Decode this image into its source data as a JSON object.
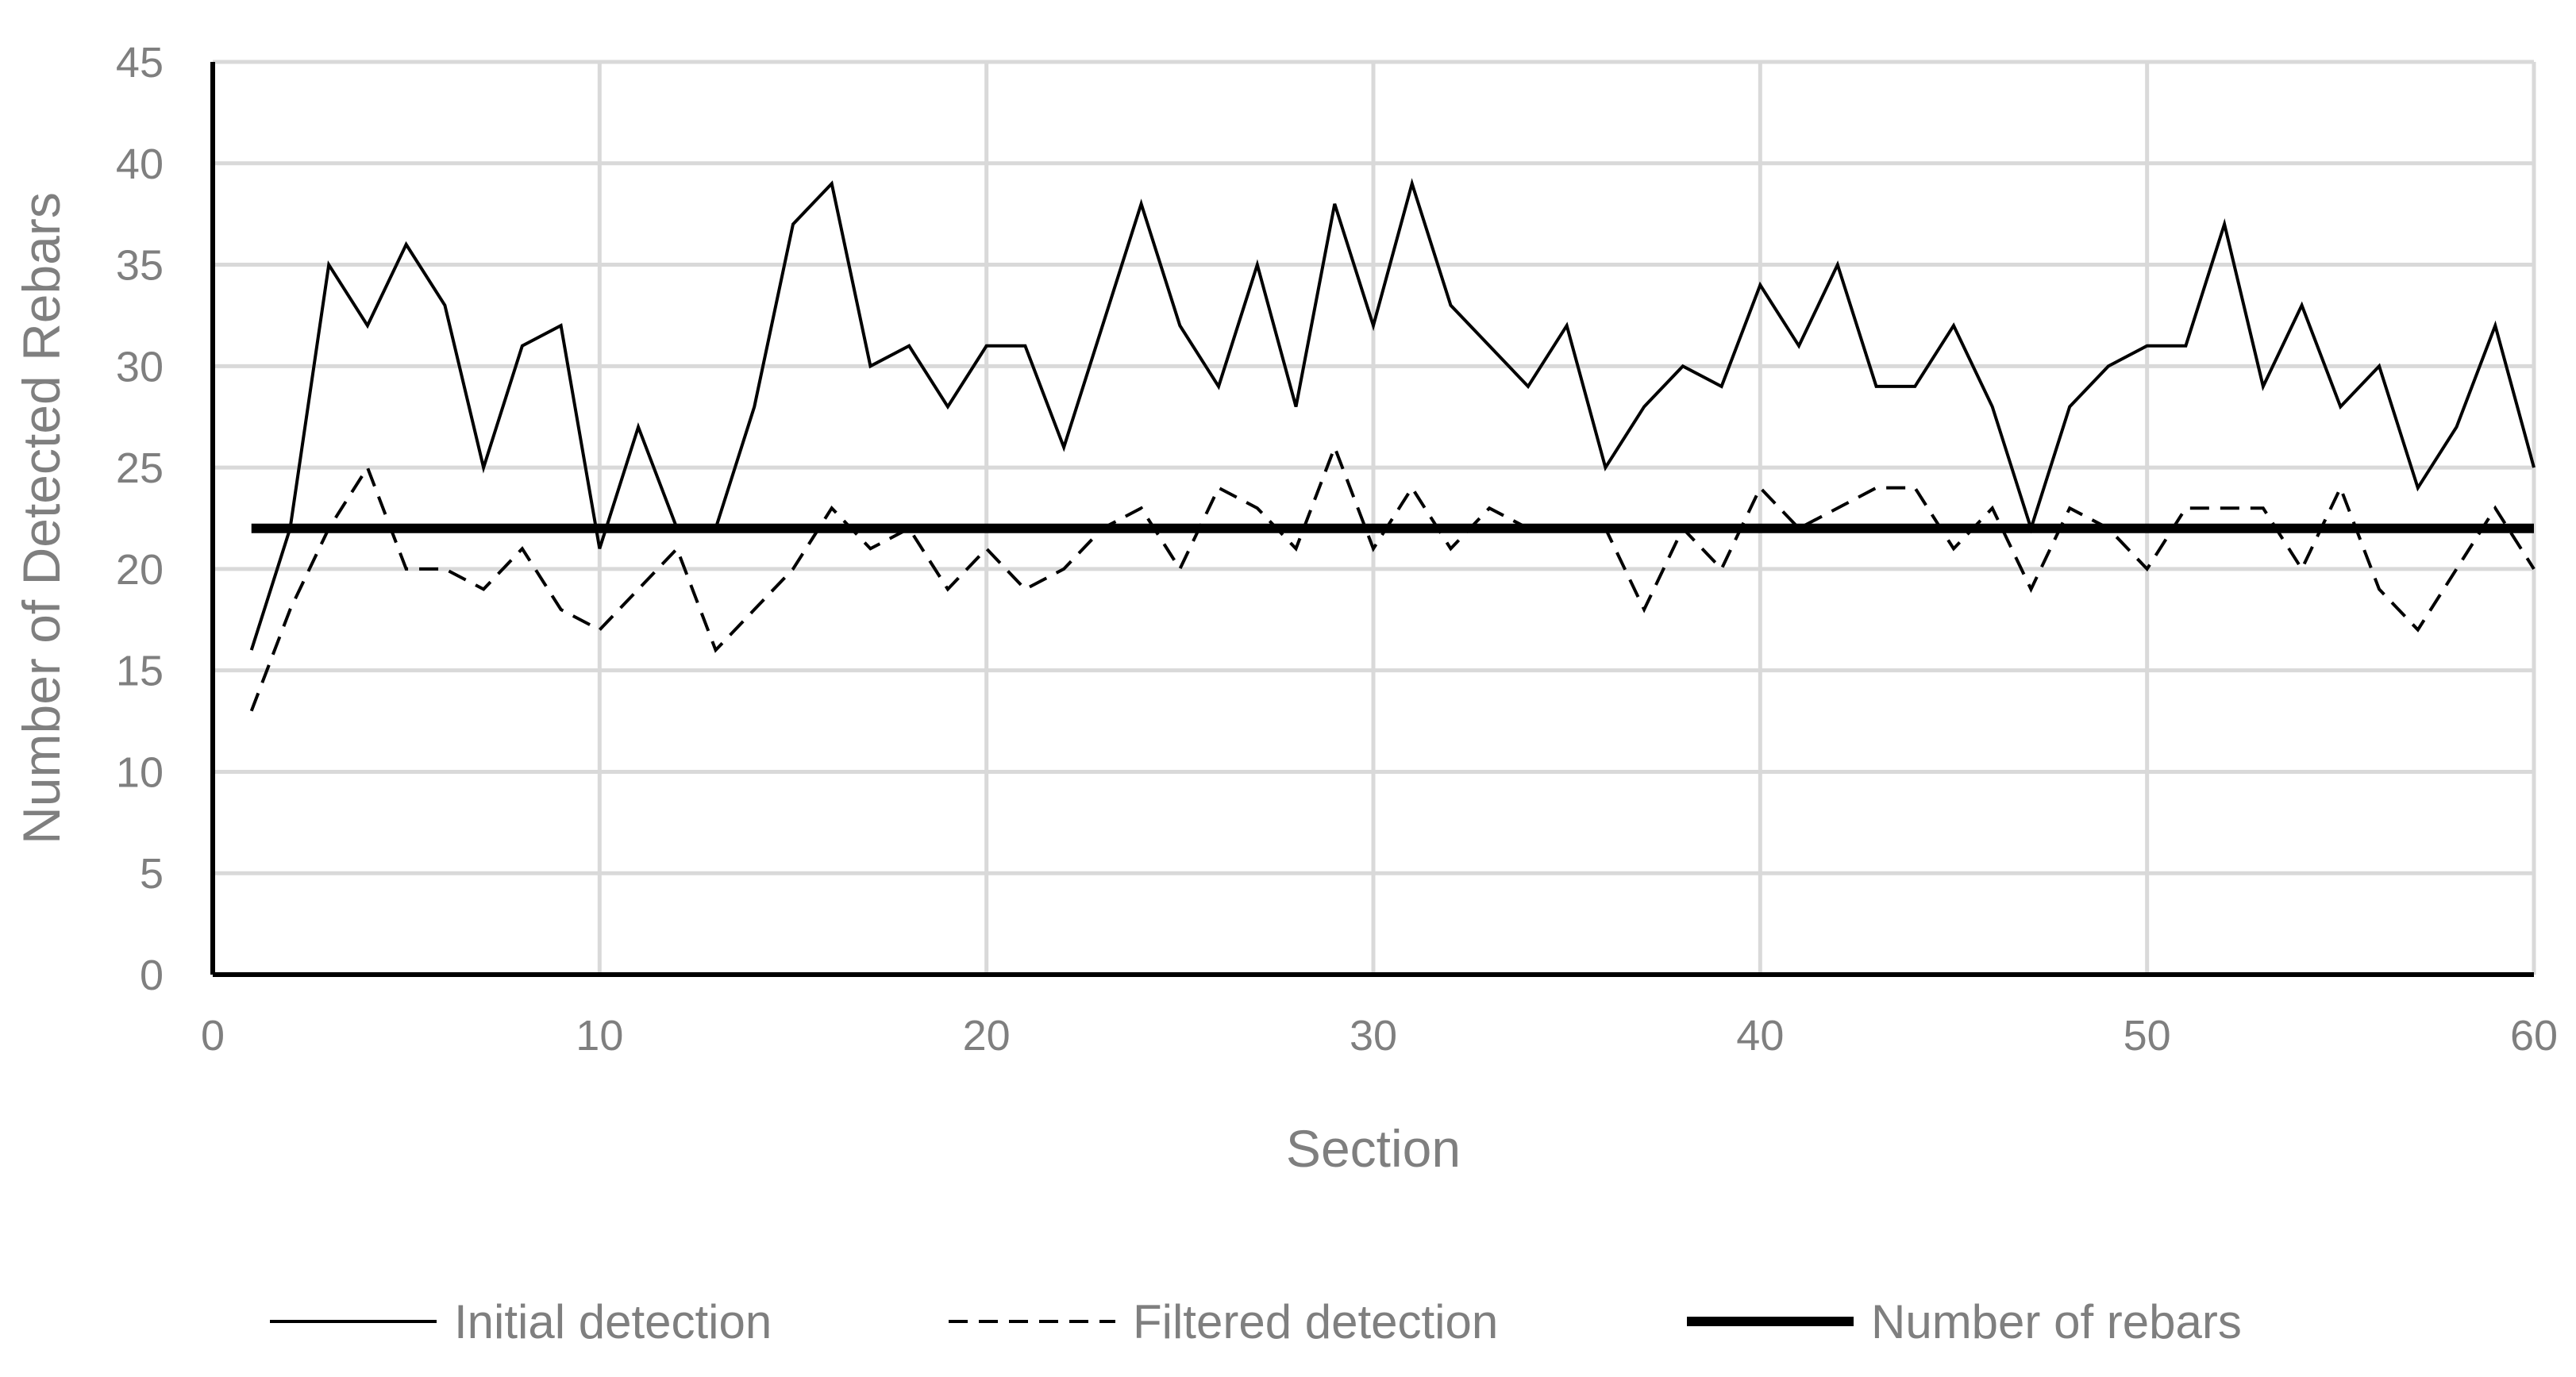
{
  "chart_data": {
    "type": "line",
    "title": "",
    "xlabel": "Section",
    "ylabel": "Number of Detected Rebars",
    "xlim": [
      0,
      60
    ],
    "ylim": [
      0,
      45
    ],
    "x_ticks": [
      0,
      10,
      20,
      30,
      40,
      50,
      60
    ],
    "y_ticks": [
      0,
      5,
      10,
      15,
      20,
      25,
      30,
      35,
      40,
      45
    ],
    "grid": true,
    "legend_position": "bottom",
    "x": [
      1,
      2,
      3,
      4,
      5,
      6,
      7,
      8,
      9,
      10,
      11,
      12,
      13,
      14,
      15,
      16,
      17,
      18,
      19,
      20,
      21,
      22,
      23,
      24,
      25,
      26,
      27,
      28,
      29,
      30,
      31,
      32,
      33,
      34,
      35,
      36,
      37,
      38,
      39,
      40,
      41,
      42,
      43,
      44,
      45,
      46,
      47,
      48,
      49,
      50,
      51,
      52,
      53,
      54,
      55,
      56,
      57,
      58,
      59,
      60
    ],
    "series": [
      {
        "name": "Initial detection",
        "style": "solid",
        "color": "#000000",
        "values": [
          16,
          22,
          35,
          32,
          36,
          33,
          25,
          31,
          32,
          21,
          27,
          22,
          22,
          28,
          37,
          39,
          30,
          31,
          28,
          31,
          31,
          26,
          32,
          38,
          32,
          29,
          35,
          28,
          38,
          32,
          39,
          33,
          31,
          29,
          32,
          25,
          28,
          30,
          29,
          34,
          31,
          35,
          29,
          29,
          32,
          28,
          22,
          28,
          30,
          31,
          31,
          37,
          29,
          33,
          28,
          30,
          24,
          27,
          32,
          25
        ]
      },
      {
        "name": "Filtered detection",
        "style": "dashed",
        "color": "#000000",
        "values": [
          13,
          18,
          22,
          25,
          20,
          20,
          19,
          21,
          18,
          17,
          19,
          21,
          16,
          18,
          20,
          23,
          21,
          22,
          19,
          21,
          19,
          20,
          22,
          23,
          20,
          24,
          23,
          21,
          26,
          21,
          24,
          21,
          23,
          22,
          22,
          22,
          18,
          22,
          20,
          24,
          22,
          23,
          24,
          24,
          21,
          23,
          19,
          23,
          22,
          20,
          23,
          23,
          23,
          20,
          24,
          19,
          17,
          20,
          23,
          20
        ]
      },
      {
        "name": "Number of rebars",
        "style": "thick",
        "color": "#000000",
        "values": [
          22,
          22,
          22,
          22,
          22,
          22,
          22,
          22,
          22,
          22,
          22,
          22,
          22,
          22,
          22,
          22,
          22,
          22,
          22,
          22,
          22,
          22,
          22,
          22,
          22,
          22,
          22,
          22,
          22,
          22,
          22,
          22,
          22,
          22,
          22,
          22,
          22,
          22,
          22,
          22,
          22,
          22,
          22,
          22,
          22,
          22,
          22,
          22,
          22,
          22,
          22,
          22,
          22,
          22,
          22,
          22,
          22,
          22,
          22,
          22
        ]
      }
    ]
  }
}
